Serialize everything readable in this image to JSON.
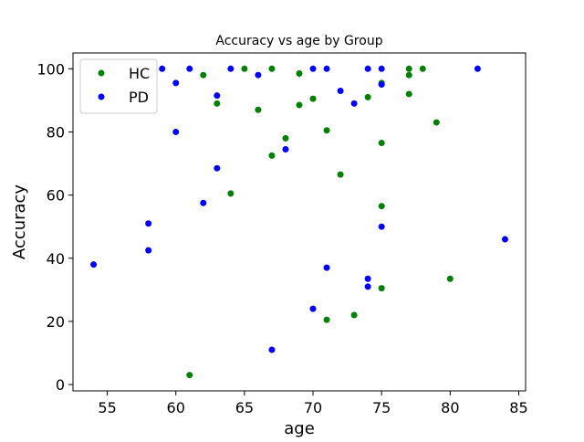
{
  "chart_data": {
    "type": "scatter",
    "title": "Accuracy vs age by Group",
    "xlabel": "age",
    "ylabel": "Accuracy",
    "xlim": [
      52.5,
      85.5
    ],
    "ylim": [
      -2,
      105
    ],
    "xticks": [
      55,
      60,
      65,
      70,
      75,
      80,
      85
    ],
    "yticks": [
      0,
      20,
      40,
      60,
      80,
      100
    ],
    "grid": false,
    "legend_position": "top-left",
    "series": [
      {
        "name": "HC",
        "color": "#008000",
        "points": [
          [
            61,
            3
          ],
          [
            62,
            98
          ],
          [
            63,
            89
          ],
          [
            64,
            60.5
          ],
          [
            65,
            100
          ],
          [
            66,
            87
          ],
          [
            67,
            72.5
          ],
          [
            67,
            100
          ],
          [
            68,
            78
          ],
          [
            69,
            88.5
          ],
          [
            69,
            98.5
          ],
          [
            70,
            90.5
          ],
          [
            71,
            80.5
          ],
          [
            71,
            20.5
          ],
          [
            72,
            66.5
          ],
          [
            73,
            22
          ],
          [
            74,
            91
          ],
          [
            75,
            76.5
          ],
          [
            75,
            56.5
          ],
          [
            75,
            30.5
          ],
          [
            75,
            95.5
          ],
          [
            77,
            98
          ],
          [
            77,
            100
          ],
          [
            77,
            92
          ],
          [
            78,
            100
          ],
          [
            79,
            83
          ],
          [
            80,
            33.5
          ]
        ]
      },
      {
        "name": "PD",
        "color": "#0000ff",
        "points": [
          [
            54,
            38
          ],
          [
            58,
            51
          ],
          [
            58,
            42.5
          ],
          [
            59,
            100
          ],
          [
            60,
            95.5
          ],
          [
            60,
            80
          ],
          [
            61,
            100
          ],
          [
            62,
            57.5
          ],
          [
            63,
            91.5
          ],
          [
            63,
            68.5
          ],
          [
            64,
            100
          ],
          [
            66,
            98
          ],
          [
            67,
            11
          ],
          [
            68,
            74.5
          ],
          [
            70,
            100
          ],
          [
            70,
            24
          ],
          [
            71,
            100
          ],
          [
            71,
            37
          ],
          [
            72,
            93
          ],
          [
            73,
            89
          ],
          [
            74,
            100
          ],
          [
            74,
            33.5
          ],
          [
            74,
            31
          ],
          [
            75,
            100
          ],
          [
            75,
            95
          ],
          [
            75,
            50
          ],
          [
            82,
            100
          ],
          [
            84,
            46
          ]
        ]
      }
    ]
  }
}
